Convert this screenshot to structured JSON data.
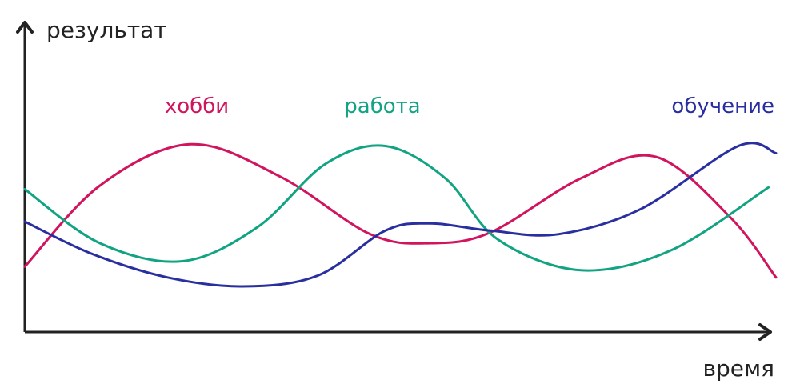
{
  "chart_data": {
    "type": "line",
    "ylabel": "результат",
    "xlabel": "время",
    "xlim": [
      0,
      100
    ],
    "ylim": [
      0,
      100
    ],
    "grid": false,
    "legend": "inline-labels",
    "series": [
      {
        "name": "хобби",
        "color": "#d0145d",
        "x": [
          0,
          10,
          22,
          34,
          46,
          54,
          62,
          74,
          84,
          94,
          100
        ],
        "y": [
          23,
          68,
          91,
          73,
          41,
          36,
          42,
          72,
          84,
          50,
          17
        ]
      },
      {
        "name": "работа",
        "color": "#12a383",
        "x": [
          0,
          10,
          21,
          31,
          40,
          48,
          56,
          63,
          74,
          86,
          99
        ],
        "y": [
          66,
          36,
          26,
          45,
          80,
          90,
          72,
          38,
          21,
          32,
          67
        ]
      },
      {
        "name": "обучение",
        "color": "#2a2fa0",
        "x": [
          0,
          9,
          19,
          29,
          39,
          48,
          54,
          62,
          71,
          82,
          95,
          100
        ],
        "y": [
          48,
          30,
          17,
          12,
          18,
          43,
          47,
          43,
          41,
          55,
          90,
          86
        ]
      }
    ]
  }
}
